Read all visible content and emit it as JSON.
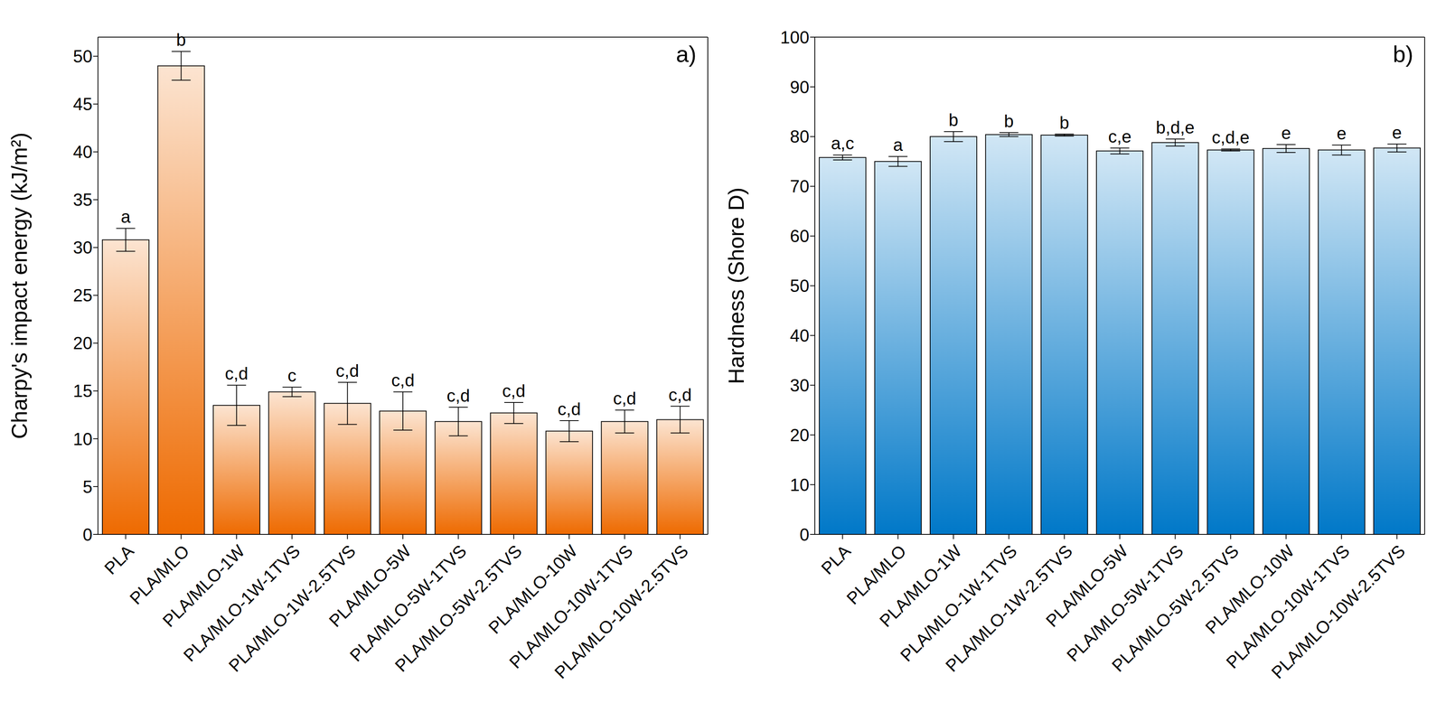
{
  "chart_data": [
    {
      "type": "bar",
      "panel": "a)",
      "y_label": "Charpy's impact energy (kJ/m²)",
      "categories": [
        "PLA",
        "PLA/MLO",
        "PLA/MLO-1W",
        "PLA/MLO-1W-1TVS",
        "PLA/MLO-1W-2.5TVS",
        "PLA/MLO-5W",
        "PLA/MLO-5W-1TVS",
        "PLA/MLO-5W-2.5TVS",
        "PLA/MLO-10W",
        "PLA/MLO-10W-1TVS",
        "PLA/MLO-10W-2.5TVS"
      ],
      "values": [
        30.8,
        49.0,
        13.5,
        14.9,
        13.7,
        12.9,
        11.8,
        12.7,
        10.8,
        11.8,
        12.0
      ],
      "error": [
        1.2,
        1.5,
        2.1,
        0.5,
        2.2,
        2.0,
        1.5,
        1.1,
        1.1,
        1.2,
        1.4
      ],
      "letters": [
        "a",
        "b",
        "c,d",
        "c",
        "c,d",
        "c,d",
        "c,d",
        "c,d",
        "c,d",
        "c,d",
        "c,d"
      ],
      "color": "#ee6a00",
      "ylim": [
        0,
        52
      ],
      "yticks": [
        0,
        5,
        10,
        15,
        20,
        25,
        30,
        35,
        40,
        45,
        50
      ],
      "grid": false
    },
    {
      "type": "bar",
      "panel": "b)",
      "y_label": "Hardness (Shore D)",
      "categories": [
        "PLA",
        "PLA/MLO",
        "PLA/MLO-1W",
        "PLA/MLO-1W-1TVS",
        "PLA/MLO-1W-2.5TVS",
        "PLA/MLO-5W",
        "PLA/MLO-5W-1TVS",
        "PLA/MLO-5W-2.5TVS",
        "PLA/MLO-10W",
        "PLA/MLO-10W-1TVS",
        "PLA/MLO-10W-2.5TVS"
      ],
      "values": [
        75.8,
        75.0,
        80.0,
        80.4,
        80.3,
        77.1,
        78.8,
        77.3,
        77.6,
        77.3,
        77.7
      ],
      "error": [
        0.5,
        1.0,
        1.0,
        0.4,
        0.2,
        0.6,
        0.7,
        0.2,
        0.8,
        1.0,
        0.8
      ],
      "letters": [
        "a,c",
        "a",
        "b",
        "b",
        "b",
        "c,e",
        "b,d,e",
        "c,d,e",
        "e",
        "e",
        "e"
      ],
      "color": "#0078c8",
      "ylim": [
        0,
        100
      ],
      "yticks": [
        0,
        10,
        20,
        30,
        40,
        50,
        60,
        70,
        80,
        90,
        100
      ],
      "grid": false
    }
  ]
}
